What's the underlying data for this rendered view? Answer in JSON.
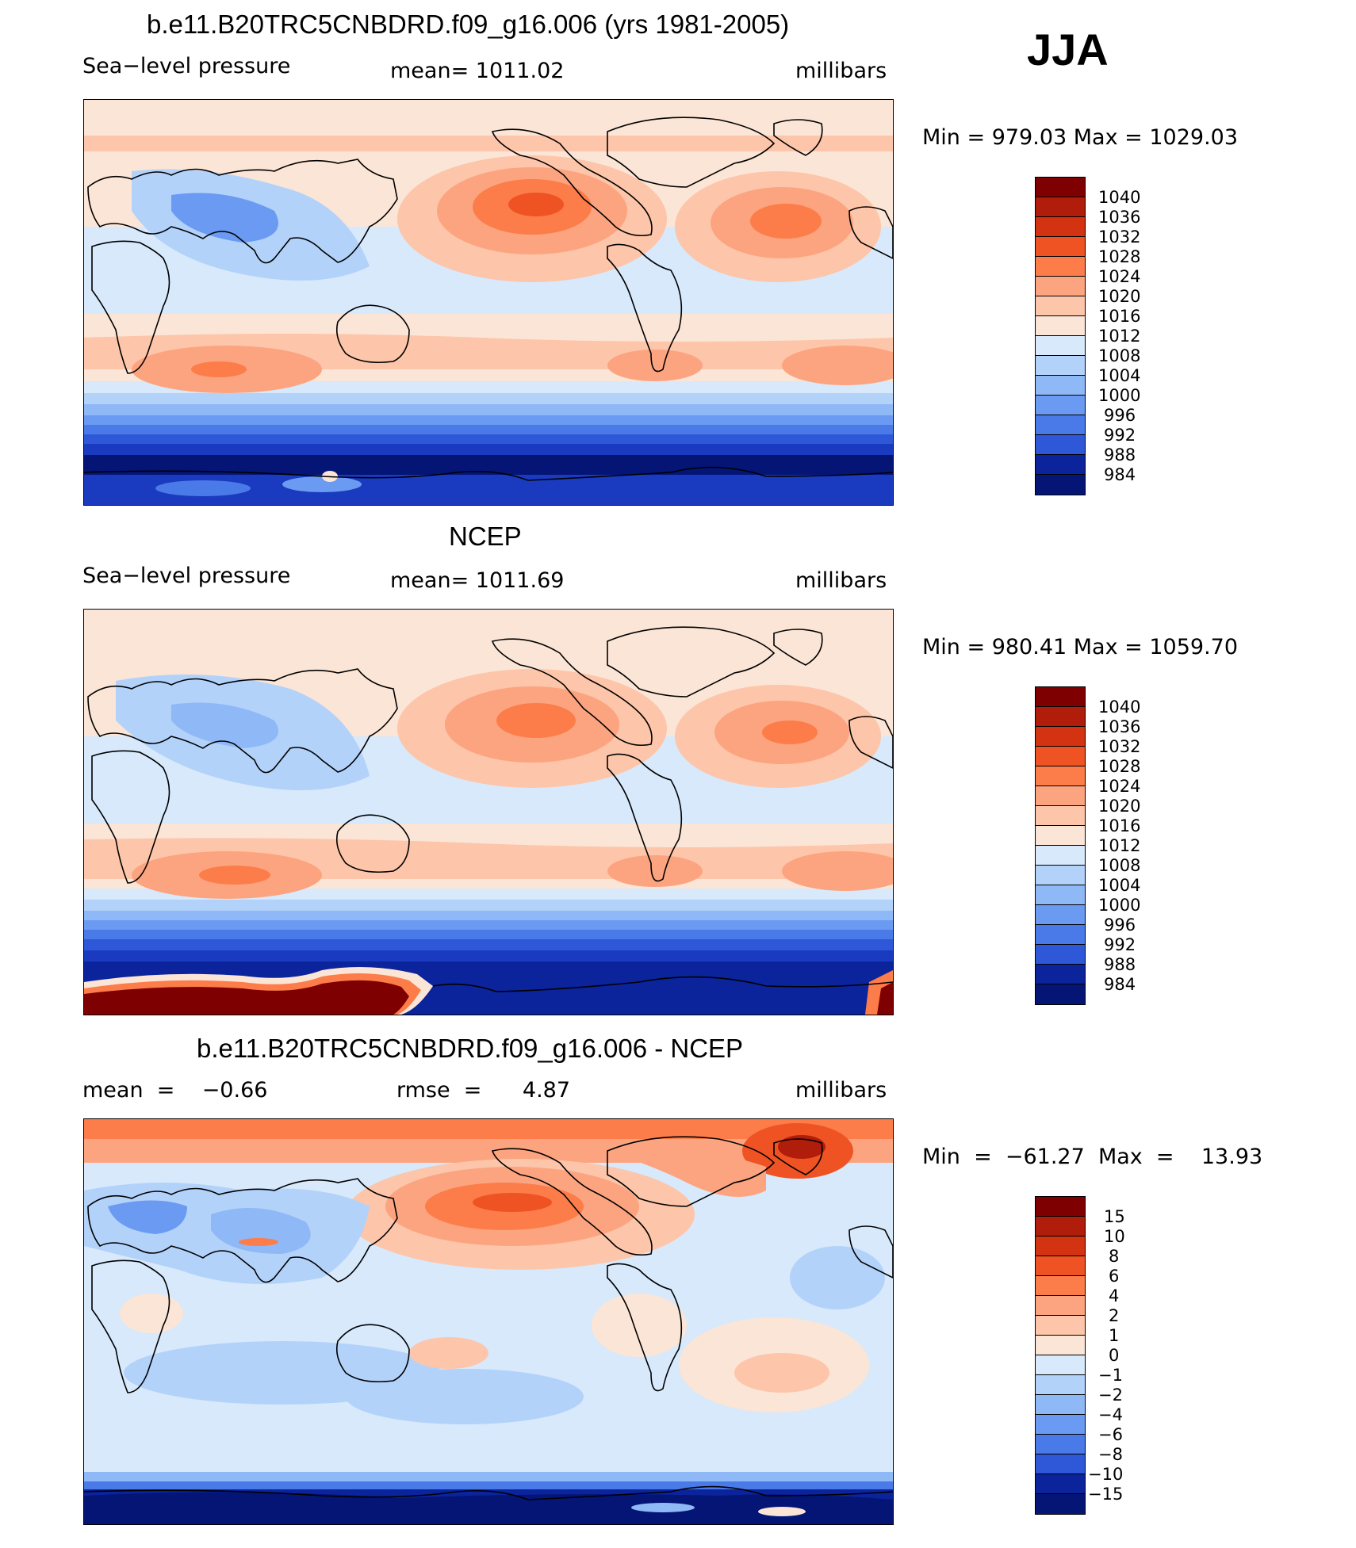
{
  "season": "JJA",
  "panels": [
    {
      "title": "b.e11.B20TRC5CNBDRD.f09_g16.006 (yrs 1981-2005)",
      "left_label": "Sea−level pressure",
      "center_label": "mean=  1011.02",
      "units": "millibars",
      "minmax": "Min  =  979.03  Max  =  1029.03",
      "levels": [
        "1040",
        "1036",
        "1032",
        "1028",
        "1024",
        "1020",
        "1016",
        "1012",
        "1008",
        "1004",
        "1000",
        "996",
        "992",
        "988",
        "984"
      ]
    },
    {
      "title": "NCEP",
      "left_label": "Sea−level pressure",
      "center_label": "mean=  1011.69",
      "units": "millibars",
      "minmax": "Min  =  980.41  Max  =  1059.70",
      "levels": [
        "1040",
        "1036",
        "1032",
        "1028",
        "1024",
        "1020",
        "1016",
        "1012",
        "1008",
        "1004",
        "1000",
        "996",
        "992",
        "988",
        "984"
      ]
    },
    {
      "title": "b.e11.B20TRC5CNBDRD.f09_g16.006 - NCEP",
      "left_label": "mean  =    −0.66",
      "center_label": "rmse  =      4.87",
      "units": "millibars",
      "minmax": "Min  =  −61.27  Max  =    13.93",
      "levels": [
        "15",
        "10",
        "8",
        "6",
        "4",
        "2",
        "1",
        "0",
        "−1",
        "−2",
        "−4",
        "−6",
        "−8",
        "−10",
        "−15"
      ]
    }
  ],
  "colors": [
    "#7f0000",
    "#b01d0b",
    "#d33310",
    "#ef5323",
    "#fc7d4a",
    "#fca480",
    "#fdc5a9",
    "#fbe5d6",
    "#d7e9fb",
    "#b3d2fa",
    "#8fb8f7",
    "#6a9af2",
    "#4a7ae8",
    "#2f58d9",
    "#1a3bc0",
    "#0b239b",
    "#041576"
  ]
}
